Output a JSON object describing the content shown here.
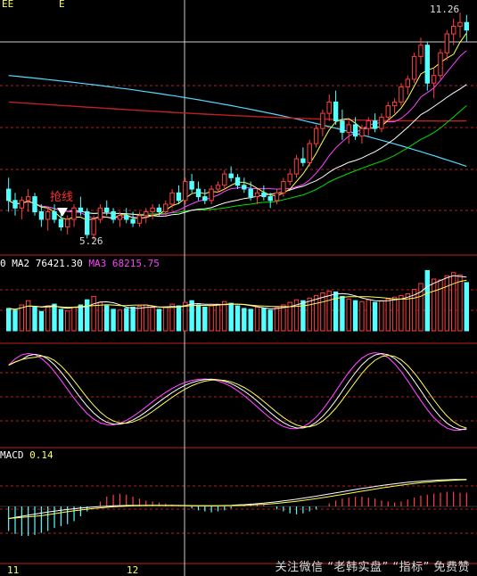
{
  "header": {
    "left_tag_1": "EE",
    "left_tag_2": "E"
  },
  "price_panel": {
    "high_label": "11.26",
    "low_label": "5.26",
    "annotation": "抢线",
    "colors": {
      "up": "#ff4040",
      "down": "#54ffff",
      "ma_white": "#ffffff",
      "ma_yellow": "#ffff54",
      "ma_magenta": "#ff40ff",
      "ma_green": "#00e000",
      "ma_cyan": "#54d8ff",
      "ma_red": "#c02020"
    }
  },
  "volume_panel": {
    "ma2_label": "MA2",
    "ma2_value": "76421.30",
    "ma3_label": "MA3",
    "ma3_value": "68215.75",
    "prefix": "0"
  },
  "macd_panel": {
    "name": "MACD",
    "value": "0.14"
  },
  "x_axis": {
    "labels": [
      "11",
      "12"
    ]
  },
  "watermark": "关注微信 “老韩实盘” “指标” 免费赞",
  "chart_data": {
    "type": "candlestick",
    "y_price_range": [
      5.26,
      11.26
    ],
    "ohlc": [
      [
        6.6,
        6.9,
        6.0,
        6.3
      ],
      [
        6.3,
        6.5,
        5.9,
        6.1
      ],
      [
        6.1,
        6.4,
        5.8,
        6.3
      ],
      [
        6.3,
        6.6,
        6.0,
        6.4
      ],
      [
        6.4,
        6.5,
        5.9,
        6.0
      ],
      [
        6.0,
        6.2,
        5.6,
        5.8
      ],
      [
        5.8,
        6.1,
        5.5,
        6.0
      ],
      [
        6.0,
        6.2,
        5.7,
        5.8
      ],
      [
        5.8,
        6.0,
        5.5,
        5.6
      ],
      [
        5.6,
        5.9,
        5.4,
        5.8
      ],
      [
        5.8,
        6.2,
        5.6,
        6.1
      ],
      [
        6.1,
        6.4,
        5.9,
        6.0
      ],
      [
        6.0,
        6.1,
        5.3,
        5.4
      ],
      [
        5.4,
        5.9,
        5.26,
        5.8
      ],
      [
        5.8,
        6.2,
        5.7,
        6.1
      ],
      [
        6.1,
        6.3,
        5.9,
        6.0
      ],
      [
        6.0,
        6.1,
        5.7,
        5.8
      ],
      [
        5.8,
        6.0,
        5.6,
        5.9
      ],
      [
        5.9,
        6.1,
        5.7,
        5.8
      ],
      [
        5.8,
        6.0,
        5.6,
        5.7
      ],
      [
        5.7,
        6.0,
        5.6,
        5.9
      ],
      [
        5.9,
        6.1,
        5.7,
        6.0
      ],
      [
        6.0,
        6.2,
        5.8,
        6.1
      ],
      [
        6.1,
        6.2,
        5.9,
        6.0
      ],
      [
        6.0,
        6.3,
        5.9,
        6.2
      ],
      [
        6.2,
        6.6,
        6.1,
        6.5
      ],
      [
        6.5,
        6.7,
        6.2,
        6.3
      ],
      [
        6.3,
        6.9,
        6.2,
        6.8
      ],
      [
        6.8,
        7.0,
        6.5,
        6.6
      ],
      [
        6.6,
        6.8,
        6.3,
        6.4
      ],
      [
        6.4,
        6.6,
        6.2,
        6.3
      ],
      [
        6.3,
        6.7,
        6.2,
        6.6
      ],
      [
        6.6,
        6.8,
        6.5,
        6.7
      ],
      [
        6.7,
        7.1,
        6.6,
        7.0
      ],
      [
        7.0,
        7.2,
        6.8,
        6.9
      ],
      [
        6.9,
        7.0,
        6.6,
        6.7
      ],
      [
        6.7,
        6.9,
        6.5,
        6.6
      ],
      [
        6.6,
        6.8,
        6.3,
        6.4
      ],
      [
        6.4,
        6.6,
        6.2,
        6.5
      ],
      [
        6.5,
        6.7,
        6.3,
        6.4
      ],
      [
        6.4,
        6.5,
        6.1,
        6.3
      ],
      [
        6.3,
        6.6,
        6.2,
        6.5
      ],
      [
        6.5,
        6.9,
        6.4,
        6.8
      ],
      [
        6.8,
        7.1,
        6.7,
        7.0
      ],
      [
        7.0,
        7.5,
        6.9,
        7.4
      ],
      [
        7.4,
        7.7,
        7.2,
        7.3
      ],
      [
        7.3,
        7.9,
        7.2,
        7.8
      ],
      [
        7.8,
        8.3,
        7.7,
        8.2
      ],
      [
        8.2,
        8.7,
        8.0,
        8.6
      ],
      [
        8.6,
        9.1,
        8.4,
        8.9
      ],
      [
        8.9,
        9.2,
        8.3,
        8.4
      ],
      [
        8.4,
        8.7,
        7.9,
        8.1
      ],
      [
        8.1,
        8.4,
        7.8,
        8.3
      ],
      [
        8.3,
        8.5,
        7.9,
        8.0
      ],
      [
        8.0,
        8.3,
        7.8,
        8.2
      ],
      [
        8.2,
        8.5,
        8.0,
        8.4
      ],
      [
        8.4,
        8.6,
        8.1,
        8.2
      ],
      [
        8.2,
        8.6,
        8.1,
        8.5
      ],
      [
        8.5,
        8.9,
        8.4,
        8.8
      ],
      [
        8.8,
        9.0,
        8.6,
        8.9
      ],
      [
        8.9,
        9.4,
        8.8,
        9.3
      ],
      [
        9.3,
        9.6,
        9.1,
        9.5
      ],
      [
        9.5,
        10.2,
        9.4,
        10.1
      ],
      [
        10.1,
        10.6,
        9.9,
        10.4
      ],
      [
        10.4,
        10.5,
        9.2,
        9.4
      ],
      [
        9.4,
        9.8,
        9.0,
        9.6
      ],
      [
        9.6,
        10.3,
        9.5,
        10.2
      ],
      [
        10.2,
        10.8,
        10.0,
        10.7
      ],
      [
        10.7,
        11.1,
        10.4,
        10.9
      ],
      [
        10.9,
        11.26,
        10.6,
        11.0
      ],
      [
        11.0,
        11.2,
        10.5,
        10.8
      ]
    ],
    "volume": [
      52,
      48,
      60,
      70,
      55,
      45,
      58,
      62,
      50,
      46,
      55,
      60,
      72,
      80,
      66,
      58,
      50,
      48,
      52,
      55,
      57,
      60,
      54,
      50,
      56,
      62,
      58,
      66,
      70,
      60,
      55,
      58,
      62,
      68,
      64,
      58,
      52,
      50,
      55,
      52,
      48,
      54,
      60,
      66,
      72,
      70,
      76,
      82,
      88,
      92,
      90,
      80,
      74,
      70,
      68,
      72,
      66,
      70,
      74,
      78,
      82,
      86,
      96,
      110,
      140,
      120,
      118,
      128,
      135,
      130,
      112
    ],
    "macd": [
      -0.25,
      -0.28,
      -0.3,
      -0.3,
      -0.29,
      -0.27,
      -0.25,
      -0.22,
      -0.2,
      -0.18,
      -0.15,
      -0.1,
      -0.05,
      0.0,
      0.05,
      0.1,
      0.12,
      0.13,
      0.12,
      0.1,
      0.08,
      0.06,
      0.05,
      0.04,
      0.03,
      0.02,
      0.01,
      0.0,
      -0.02,
      -0.04,
      -0.05,
      -0.06,
      -0.05,
      -0.04,
      -0.02,
      0.0,
      0.02,
      0.03,
      0.03,
      0.02,
      0.0,
      -0.03,
      -0.05,
      -0.07,
      -0.08,
      -0.07,
      -0.05,
      -0.03,
      0.0,
      0.03,
      0.06,
      0.08,
      0.09,
      0.1,
      0.1,
      0.09,
      0.08,
      0.06,
      0.05,
      0.04,
      0.05,
      0.07,
      0.09,
      0.11,
      0.12,
      0.13,
      0.14,
      0.15,
      0.15,
      0.14,
      0.14
    ]
  }
}
